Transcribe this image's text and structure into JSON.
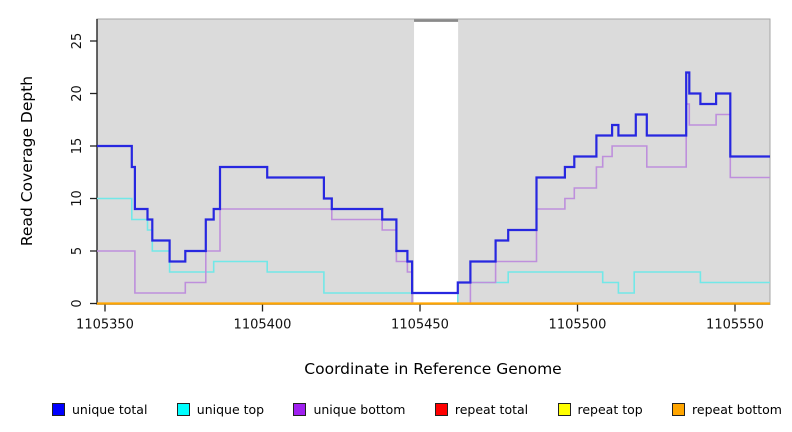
{
  "chart_data": {
    "type": "line",
    "subtype": "step-coverage",
    "title": "",
    "xlabel": "Coordinate in Reference Genome",
    "ylabel": "Read Coverage Depth",
    "x_ticks": [
      1105350,
      1105400,
      1105450,
      1105500,
      1105550
    ],
    "y_ticks": [
      0,
      5,
      10,
      15,
      20,
      25
    ],
    "xlim": [
      1105347.4,
      1105561.1
    ],
    "ylim": [
      0,
      27
    ],
    "grid": false,
    "legend_position": "bottom",
    "background_color": "#DBDBDB",
    "gap_band_color": "#FFFFFF",
    "gap_region": {
      "start": 1105448.1,
      "end": 1105462.1
    },
    "render_order": [
      3,
      4,
      1,
      2,
      5,
      0
    ],
    "series": [
      {
        "name": "unique total",
        "legend_color": "#0000FF",
        "line_color": "#2727E0",
        "width": 2.2,
        "steps": [
          [
            1105347.4,
            15
          ],
          [
            1105358.5,
            13
          ],
          [
            1105359.5,
            9
          ],
          [
            1105363.5,
            8
          ],
          [
            1105365,
            6
          ],
          [
            1105370.5,
            4
          ],
          [
            1105375.5,
            5
          ],
          [
            1105382,
            8
          ],
          [
            1105384.5,
            9
          ],
          [
            1105386.5,
            13
          ],
          [
            1105401.5,
            12
          ],
          [
            1105419.5,
            10
          ],
          [
            1105422,
            9
          ],
          [
            1105438,
            8
          ],
          [
            1105442.5,
            5
          ],
          [
            1105446,
            4
          ],
          [
            1105447.5,
            1
          ],
          [
            1105462,
            2
          ],
          [
            1105466,
            4
          ],
          [
            1105474,
            6
          ],
          [
            1105478,
            7
          ],
          [
            1105487,
            12
          ],
          [
            1105496,
            13
          ],
          [
            1105499,
            14
          ],
          [
            1105506,
            16
          ],
          [
            1105511,
            17
          ],
          [
            1105513,
            16
          ],
          [
            1105518.5,
            18
          ],
          [
            1105522,
            16
          ],
          [
            1105534.5,
            22
          ],
          [
            1105535.5,
            20
          ],
          [
            1105539,
            19
          ],
          [
            1105544,
            20
          ],
          [
            1105548.5,
            14
          ]
        ]
      },
      {
        "name": "unique top",
        "legend_color": "#00FFFF",
        "line_color": "#72E8E8",
        "width": 1.6,
        "steps": [
          [
            1105347.4,
            10
          ],
          [
            1105358.5,
            8
          ],
          [
            1105363.5,
            7
          ],
          [
            1105365,
            5
          ],
          [
            1105370.5,
            3
          ],
          [
            1105384.5,
            4
          ],
          [
            1105401.5,
            3
          ],
          [
            1105419.5,
            1
          ],
          [
            1105447.5,
            0
          ],
          [
            1105462,
            2
          ],
          [
            1105478,
            3
          ],
          [
            1105508,
            2
          ],
          [
            1105513,
            1
          ],
          [
            1105518,
            3
          ],
          [
            1105539,
            2
          ]
        ]
      },
      {
        "name": "unique bottom",
        "legend_color": "#A020F0",
        "line_color": "#BE8FDC",
        "width": 1.6,
        "steps": [
          [
            1105347.4,
            5
          ],
          [
            1105359.5,
            1
          ],
          [
            1105375.5,
            2
          ],
          [
            1105382,
            5
          ],
          [
            1105386.5,
            9
          ],
          [
            1105422,
            8
          ],
          [
            1105438,
            7
          ],
          [
            1105442.5,
            4
          ],
          [
            1105446,
            3
          ],
          [
            1105447.5,
            0
          ],
          [
            1105466,
            2
          ],
          [
            1105474,
            4
          ],
          [
            1105487,
            9
          ],
          [
            1105496,
            10
          ],
          [
            1105499,
            11
          ],
          [
            1105506,
            13
          ],
          [
            1105508,
            14
          ],
          [
            1105511,
            15
          ],
          [
            1105522,
            13
          ],
          [
            1105534.5,
            19
          ],
          [
            1105535.5,
            17
          ],
          [
            1105544,
            18
          ],
          [
            1105548.5,
            12
          ]
        ]
      },
      {
        "name": "repeat total",
        "legend_color": "#FF0000",
        "line_color": "#E02020",
        "width": 1.6,
        "steps": [
          [
            1105347.4,
            0
          ]
        ]
      },
      {
        "name": "repeat top",
        "legend_color": "#FFFF00",
        "line_color": "#FFFF00",
        "width": 1.6,
        "steps": [
          [
            1105347.4,
            0
          ]
        ]
      },
      {
        "name": "repeat bottom",
        "legend_color": "#FFA500",
        "line_color": "#FFA500",
        "width": 2.2,
        "steps": [
          [
            1105347.4,
            0
          ]
        ]
      }
    ]
  }
}
